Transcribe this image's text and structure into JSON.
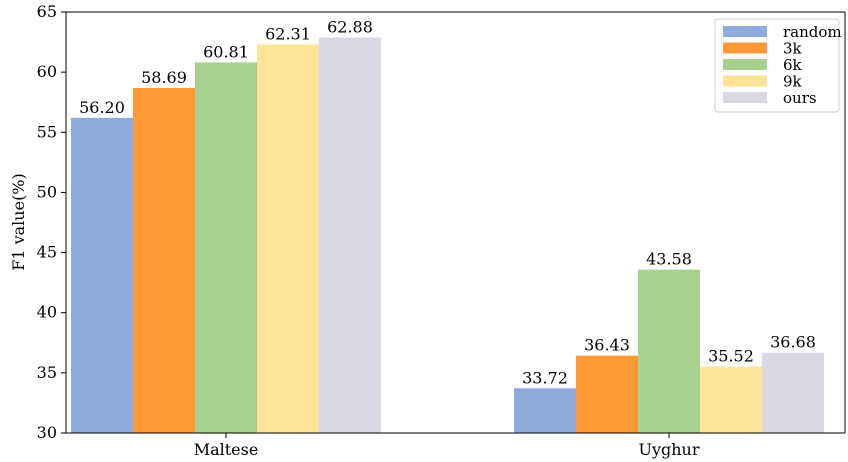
{
  "chart_data": {
    "type": "bar",
    "categories": [
      "Maltese",
      "Uyghur"
    ],
    "series": [
      {
        "name": "random",
        "values": [
          56.2,
          33.72
        ],
        "color": "#8fabdc"
      },
      {
        "name": "3k",
        "values": [
          58.69,
          36.43
        ],
        "color": "#fe9935"
      },
      {
        "name": "6k",
        "values": [
          60.81,
          43.58
        ],
        "color": "#a8d08e"
      },
      {
        "name": "9k",
        "values": [
          62.31,
          35.52
        ],
        "color": "#fee499"
      },
      {
        "name": "ours",
        "values": [
          62.88,
          36.68
        ],
        "color": "#d9d8e3"
      }
    ],
    "data_labels": [
      [
        "56.20",
        "33.72"
      ],
      [
        "58.69",
        "36.43"
      ],
      [
        "60.81",
        "43.58"
      ],
      [
        "62.31",
        "35.52"
      ],
      [
        "62.88",
        "36.68"
      ]
    ],
    "ylabel": "F1 value(%)",
    "xlabel": "",
    "ylim": [
      30,
      65
    ],
    "yticks": [
      30,
      35,
      40,
      45,
      50,
      55,
      60,
      65
    ],
    "ytick_labels": [
      "30",
      "35",
      "40",
      "45",
      "50",
      "55",
      "60",
      "65"
    ],
    "grid": false,
    "legend_position": "top-right"
  }
}
